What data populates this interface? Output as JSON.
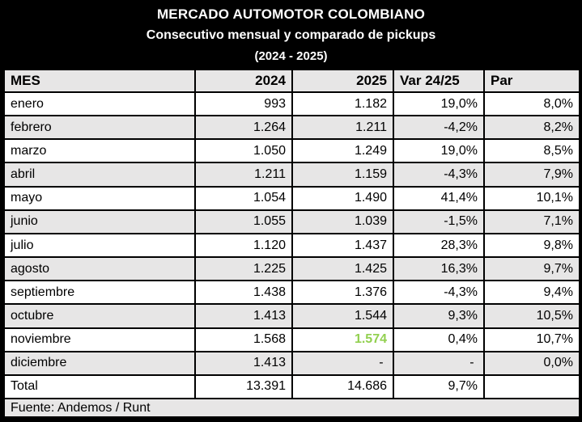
{
  "title": {
    "line1": "MERCADO AUTOMOTOR COLOMBIANO",
    "line2": "Consecutivo mensual y comparado de pickups",
    "line3": "(2024 - 2025)"
  },
  "table": {
    "columns": [
      {
        "label": "MES",
        "align": "left"
      },
      {
        "label": "2024",
        "align": "right"
      },
      {
        "label": "2025",
        "align": "right"
      },
      {
        "label": "Var 24/25",
        "align": "left"
      },
      {
        "label": "Par",
        "align": "left"
      }
    ],
    "rows": [
      {
        "mes": "enero",
        "v2024": "993",
        "v2025": "1.182",
        "var": "19,0%",
        "par": "8,0%"
      },
      {
        "mes": "febrero",
        "v2024": "1.264",
        "v2025": "1.211",
        "var": "-4,2%",
        "par": "8,2%"
      },
      {
        "mes": "marzo",
        "v2024": "1.050",
        "v2025": "1.249",
        "var": "19,0%",
        "par": "8,5%"
      },
      {
        "mes": "abril",
        "v2024": "1.211",
        "v2025": "1.159",
        "var": "-4,3%",
        "par": "7,9%"
      },
      {
        "mes": "mayo",
        "v2024": "1.054",
        "v2025": "1.490",
        "var": "41,4%",
        "par": "10,1%"
      },
      {
        "mes": "junio",
        "v2024": "1.055",
        "v2025": "1.039",
        "var": "-1,5%",
        "par": "7,1%"
      },
      {
        "mes": "julio",
        "v2024": "1.120",
        "v2025": "1.437",
        "var": "28,3%",
        "par": "9,8%"
      },
      {
        "mes": "agosto",
        "v2024": "1.225",
        "v2025": "1.425",
        "var": "16,3%",
        "par": "9,7%"
      },
      {
        "mes": "septiembre",
        "v2024": "1.438",
        "v2025": "1.376",
        "var": "-4,3%",
        "par": "9,4%"
      },
      {
        "mes": "octubre",
        "v2024": "1.413",
        "v2025": "1.544",
        "var": "9,3%",
        "par": "10,5%"
      },
      {
        "mes": "noviembre",
        "v2024": "1.568",
        "v2025": "1.574",
        "var": "0,4%",
        "par": "10,7%",
        "highlight_2025": true
      },
      {
        "mes": "diciembre",
        "v2024": "1.413",
        "v2025": "- ",
        "var": "- ",
        "par": "0,0%"
      }
    ],
    "total_row": {
      "mes": "Total",
      "v2024": "13.391",
      "v2025": "14.686",
      "var": "9,7%",
      "par": ""
    }
  },
  "footer": {
    "source_label": "Fuente: Andemos / Runt"
  },
  "colors": {
    "title_bg": "#000000",
    "title_text": "#ffffff",
    "row_alt_bg": "#e7e6e6",
    "header_bg": "#e7e6e6",
    "border": "#000000",
    "highlight_green": "#92D050"
  },
  "chart_data": {
    "type": "table",
    "title": "MERCADO AUTOMOTOR COLOMBIANO",
    "subtitle": "Consecutivo mensual y comparado de pickups (2024 - 2025)",
    "columns": [
      "MES",
      "2024",
      "2025",
      "Var 24/25",
      "Par"
    ],
    "categories": [
      "enero",
      "febrero",
      "marzo",
      "abril",
      "mayo",
      "junio",
      "julio",
      "agosto",
      "septiembre",
      "octubre",
      "noviembre",
      "diciembre"
    ],
    "series": [
      {
        "name": "2024",
        "values": [
          993,
          1264,
          1050,
          1211,
          1054,
          1055,
          1120,
          1225,
          1438,
          1413,
          1568,
          1413
        ]
      },
      {
        "name": "2025",
        "values": [
          1182,
          1211,
          1249,
          1159,
          1490,
          1039,
          1437,
          1425,
          1376,
          1544,
          1574,
          null
        ]
      },
      {
        "name": "Var 24/25 (%)",
        "values": [
          19.0,
          -4.2,
          19.0,
          -4.3,
          41.4,
          -1.5,
          28.3,
          16.3,
          -4.3,
          9.3,
          0.4,
          null
        ]
      },
      {
        "name": "Par (%)",
        "values": [
          8.0,
          8.2,
          8.5,
          7.9,
          10.1,
          7.1,
          9.8,
          9.7,
          9.4,
          10.5,
          10.7,
          0.0
        ]
      }
    ],
    "totals": {
      "2024": 13391,
      "2025": 14686,
      "Var 24/25 (%)": 9.7
    },
    "source": "Fuente: Andemos / Runt",
    "highlight": {
      "row": "noviembre",
      "column": "2025",
      "value": 1574,
      "color": "#92D050"
    }
  }
}
